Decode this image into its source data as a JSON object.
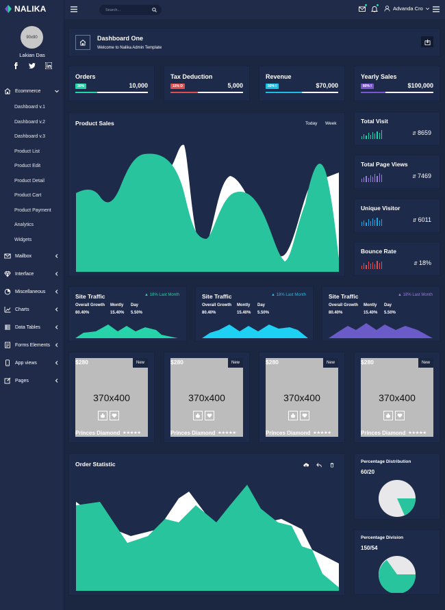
{
  "brand": {
    "name": "NALIKA"
  },
  "profile": {
    "avatar": "90x90",
    "name": "Lakian Das",
    "social": [
      "facebook-icon",
      "twitter-icon",
      "linkedin-icon"
    ]
  },
  "sidebar": {
    "items": [
      {
        "label": "Ecommerce",
        "icon": "home-icon",
        "expanded": true
      },
      {
        "label": "Mailbox",
        "icon": "mail-icon"
      },
      {
        "label": "Interface",
        "icon": "diamond-icon"
      },
      {
        "label": "Miscellaneous",
        "icon": "pie-icon"
      },
      {
        "label": "Charts",
        "icon": "chart-icon"
      },
      {
        "label": "Data Tables",
        "icon": "table-icon"
      },
      {
        "label": "Forms Elements",
        "icon": "form-icon"
      },
      {
        "label": "App views",
        "icon": "phone-icon"
      },
      {
        "label": "Pages",
        "icon": "edit-icon"
      }
    ],
    "subitems": [
      "Dashboard v.1",
      "Dashboard v.2",
      "Dashboard v.3",
      "Product List",
      "Product Edit",
      "Product Detail",
      "Product Cart",
      "Product Payment",
      "Analytics",
      "Widgets"
    ]
  },
  "topbar": {
    "search_placeholder": "Search...",
    "user": "Advanda Cro"
  },
  "header": {
    "title": "Dashboard One",
    "subtitle": "Welcome to Nalika Admin Template"
  },
  "stats": [
    {
      "title": "Orders",
      "badge": "30%",
      "value": "10,000",
      "progress": 0.3,
      "color": "#27d3a8"
    },
    {
      "title": "Tax Deduction",
      "badge": "15% D",
      "value": "5,000",
      "progress": 0.38,
      "color": "#e34d4d"
    },
    {
      "title": "Revenue",
      "badge": "50% I",
      "value": "$70,000",
      "progress": 0.5,
      "color": "#21bde6"
    },
    {
      "title": "Yearly Sales",
      "badge": "80% I",
      "value": "$100,000",
      "progress": 0.34,
      "color": "#7b55d2"
    }
  ],
  "product_sales": {
    "title": "Product Sales",
    "tabs": [
      "Today",
      "Week"
    ]
  },
  "kpis": [
    {
      "title": "Total Visit",
      "value": "8659",
      "color": "#27d3a8",
      "bars": [
        4,
        7,
        5,
        9,
        6,
        10,
        8,
        11,
        9,
        13
      ]
    },
    {
      "title": "Total Page Views",
      "value": "7469",
      "color": "#9b7be0",
      "bars": [
        5,
        7,
        9,
        6,
        10,
        8,
        12,
        9,
        13,
        11
      ]
    },
    {
      "title": "Unique Visitor",
      "value": "6011",
      "color": "#21a8e6",
      "bars": [
        6,
        8,
        5,
        10,
        7,
        11,
        9,
        12,
        8,
        10
      ]
    },
    {
      "title": "Bounce Rate",
      "value": "18%",
      "color": "#e34d4d",
      "bars": [
        5,
        9,
        6,
        11,
        8,
        10,
        7,
        12,
        9,
        11
      ]
    }
  ],
  "traffic": [
    {
      "title": "Site Traffic",
      "badge": "18% Last Month",
      "badge_color": "#27d3a8",
      "labels": [
        "Overall Growth",
        "Montly",
        "Day"
      ],
      "values": [
        "80.40%",
        "15.40%",
        "5.50%"
      ],
      "color": "#27d3a8"
    },
    {
      "title": "Site Traffic",
      "badge": "18% Last Month",
      "badge_color": "#21bde6",
      "labels": [
        "Overall Growth",
        "Montly",
        "Day"
      ],
      "values": [
        "80.40%",
        "15.40%",
        "5.50%"
      ],
      "color": "#1fd0f5"
    },
    {
      "title": "Site Traffic",
      "badge": "18% Last Month",
      "badge_color": "#9b7be0",
      "labels": [
        "Overall Growth",
        "Montly",
        "Day"
      ],
      "values": [
        "80.40%",
        "15.40%",
        "5.50%"
      ],
      "color": "#6b5bc9"
    }
  ],
  "products": [
    {
      "price": "$280",
      "badge": "New",
      "placeholder": "370x400",
      "name": "Princes Diamond",
      "stars": "★★★★★"
    },
    {
      "price": "$280",
      "badge": "New",
      "placeholder": "370x400",
      "name": "Princes Diamond",
      "stars": "★★★★★"
    },
    {
      "price": "$280",
      "badge": "New",
      "placeholder": "370x400",
      "name": "Princes Diamond",
      "stars": "★★★★★"
    },
    {
      "price": "$280",
      "badge": "New",
      "placeholder": "370x400",
      "name": "Princes Diamond",
      "stars": "★★★★★"
    }
  ],
  "order_statistic": {
    "title": "Order Statistic"
  },
  "distribution": [
    {
      "title": "Percentage Distribution",
      "value": "60/20"
    },
    {
      "title": "Percentage Division",
      "value": "150/54"
    }
  ]
}
